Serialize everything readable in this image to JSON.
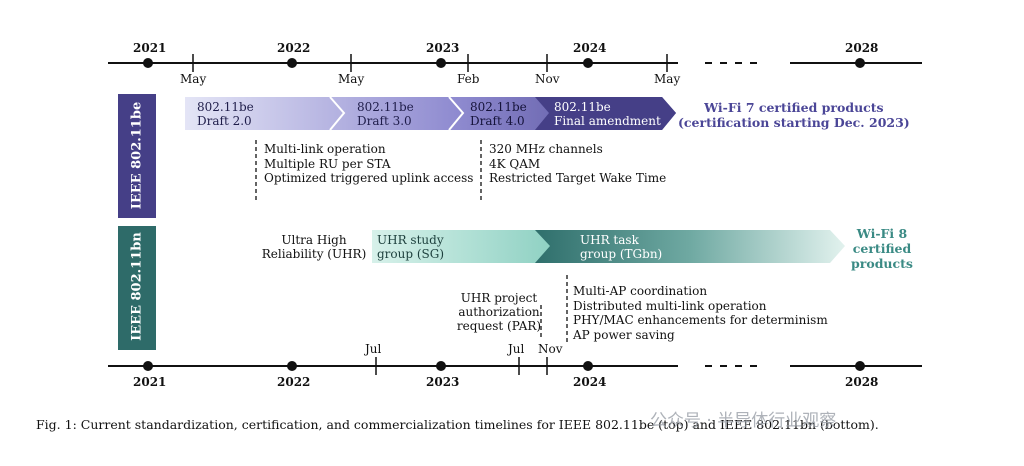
{
  "colors": {
    "be_dark": "#453f87",
    "be_mid": "#7c78c4",
    "be_light": "#dfe0f4",
    "bn_dark": "#2e6b69",
    "bn_light": "#cfece4",
    "wifi7_text": "#4b4697",
    "wifi8_text": "#3a8a84"
  },
  "top_timeline": {
    "years": [
      "2021",
      "2022",
      "2023",
      "2024",
      "2028"
    ],
    "months": [
      "May",
      "May",
      "Feb",
      "Nov",
      "May"
    ]
  },
  "bottom_timeline": {
    "years": [
      "2021",
      "2022",
      "2023",
      "2024",
      "2028"
    ],
    "months": [
      "Jul",
      "Jul",
      "Nov"
    ]
  },
  "be_row": {
    "label": "IEEE 802.11be",
    "arrows": [
      {
        "line1": "802.11be",
        "line2": "Draft 2.0"
      },
      {
        "line1": "802.11be",
        "line2": "Draft 3.0"
      },
      {
        "line1": "802.11be",
        "line2": "Draft 4.0"
      },
      {
        "line1": "802.11be",
        "line2": "Final amendment"
      }
    ],
    "wifi7_line1": "Wi-Fi 7 certified products",
    "wifi7_line2": "(certification starting Dec. 2023)",
    "features_a": [
      "Multi-link operation",
      "Multiple RU per STA",
      "Optimized triggered uplink access"
    ],
    "features_b": [
      "320 MHz channels",
      "4K QAM",
      "Restricted Target Wake Time"
    ]
  },
  "bn_row": {
    "label": "IEEE 802.11bn",
    "uhr_line1": "Ultra High",
    "uhr_line2": "Reliability (UHR)",
    "sg_line1": "UHR study",
    "sg_line2": "group (SG)",
    "tg_line1": "UHR task",
    "tg_line2": "group (TGbn)",
    "wifi8": [
      "Wi-Fi 8",
      "certified",
      "products"
    ],
    "par": [
      "UHR project",
      "authorization",
      "request (PAR)"
    ],
    "features": [
      "Multi-AP coordination",
      "Distributed multi-link operation",
      "PHY/MAC enhancements for determinism",
      "AP power saving"
    ]
  },
  "caption": "Fig. 1: Current standardization, certification, and commercialization timelines for IEEE 802.11be (top) and IEEE 802.11bn (bottom).",
  "watermark": "公众号 · 半导体行业观察"
}
